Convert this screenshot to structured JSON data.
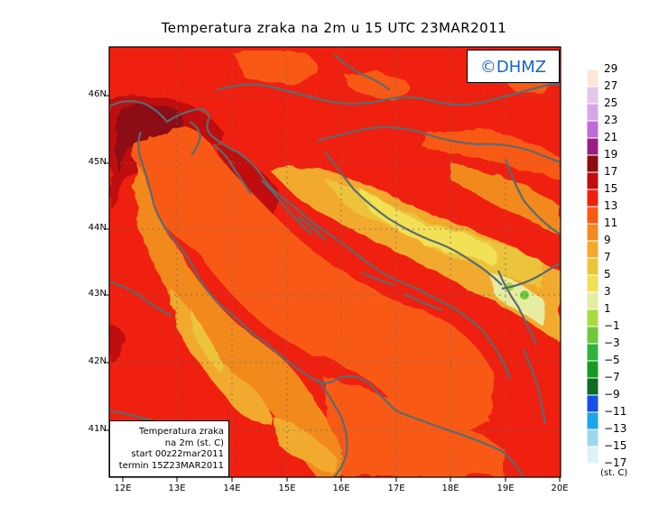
{
  "title": "Temperatura zraka na 2m u 15 UTC 23MAR2011",
  "logo": "©DHMZ",
  "info_box": [
    "Temperatura zraka",
    "na 2m (st. C)",
    "start 00z22mar2011",
    "termin 15Z23MAR2011"
  ],
  "lat_ticks": [
    "46N",
    "45N",
    "44N",
    "43N",
    "42N",
    "41N"
  ],
  "lon_ticks": [
    "12E",
    "13E",
    "14E",
    "15E",
    "16E",
    "17E",
    "18E",
    "19E",
    "20E"
  ],
  "legend": {
    "unit": "(st. C)",
    "values": [
      "29",
      "27",
      "25",
      "23",
      "21",
      "19",
      "17",
      "15",
      "13",
      "11",
      "9",
      "7",
      "5",
      "3",
      "1",
      "−1",
      "−3",
      "−5",
      "−7",
      "−9",
      "−11",
      "−13",
      "−15",
      "−17"
    ],
    "colors": [
      "#fce8d8",
      "#e6c6ea",
      "#d7a6e8",
      "#c06cd6",
      "#9a1e84",
      "#8c0c14",
      "#c00c10",
      "#f02010",
      "#f85a14",
      "#f2891e",
      "#f2aa2e",
      "#ecc43a",
      "#f2e054",
      "#e6eca0",
      "#a8dc3e",
      "#6ec83a",
      "#2eb43a",
      "#129c20",
      "#0c6c22",
      "#1a4ee6",
      "#1ea4e8",
      "#9cd8ec",
      "#ddf2f4"
    ],
    "swatch_count": 23
  },
  "map_colors": {
    "frame": "#000000",
    "coast": "#5b6b6e",
    "grid": "#6a6a6a"
  }
}
